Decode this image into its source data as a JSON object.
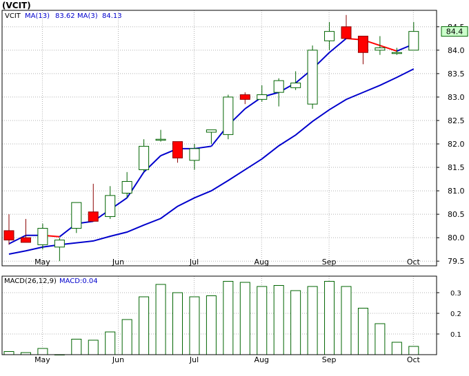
{
  "chart_data": [
    {
      "type": "candlestick",
      "title": "(VCIT)",
      "legend": {
        "symbol": "VCIT",
        "ma_long_label": "MA(13)",
        "ma_long_value": "83.62",
        "ma_short_label": "MA(3)",
        "ma_short_value": "84.13"
      },
      "last_price_label": "84.4",
      "colors": {
        "up_body": "#ffffff",
        "up_outline": "#006400",
        "down_body": "#ff0000",
        "down_outline": "#8b0000",
        "ma_long": "#0000cc",
        "ma_short_up": "#0000cc",
        "ma_short_down": "#ff0000",
        "last_price_box": "#ccffcc"
      },
      "x_labels": [
        {
          "label": "May",
          "index": 1
        },
        {
          "label": "Jun",
          "index": 5.5
        },
        {
          "label": "Jul",
          "index": 10
        },
        {
          "label": "Aug",
          "index": 14
        },
        {
          "label": "Sep",
          "index": 18
        },
        {
          "label": "Oct",
          "index": 23
        }
      ],
      "ylim": [
        79.4,
        84.85
      ],
      "yticks": [
        "79.5",
        "80.0",
        "80.5",
        "81.0",
        "81.5",
        "82.0",
        "82.5",
        "83.0",
        "83.5",
        "84.0",
        "84.5"
      ],
      "candles": [
        {
          "o": 80.15,
          "h": 80.5,
          "l": 79.85,
          "c": 79.95
        },
        {
          "o": 80.0,
          "h": 80.4,
          "l": 79.9,
          "c": 79.9
        },
        {
          "o": 79.85,
          "h": 80.3,
          "l": 79.75,
          "c": 80.2
        },
        {
          "o": 79.8,
          "h": 80.0,
          "l": 79.5,
          "c": 79.95
        },
        {
          "o": 80.2,
          "h": 80.75,
          "l": 80.1,
          "c": 80.75
        },
        {
          "o": 80.55,
          "h": 81.15,
          "l": 80.35,
          "c": 80.35
        },
        {
          "o": 80.45,
          "h": 81.1,
          "l": 80.4,
          "c": 80.9
        },
        {
          "o": 80.95,
          "h": 81.4,
          "l": 80.85,
          "c": 81.2
        },
        {
          "o": 81.45,
          "h": 82.1,
          "l": 81.4,
          "c": 81.95
        },
        {
          "o": 82.1,
          "h": 82.3,
          "l": 82.05,
          "c": 82.1
        },
        {
          "o": 82.05,
          "h": 82.05,
          "l": 81.6,
          "c": 81.7
        },
        {
          "o": 81.65,
          "h": 82.0,
          "l": 81.45,
          "c": 81.9
        },
        {
          "o": 82.25,
          "h": 82.3,
          "l": 82.0,
          "c": 82.3
        },
        {
          "o": 82.2,
          "h": 83.05,
          "l": 82.1,
          "c": 83.0
        },
        {
          "o": 83.05,
          "h": 83.1,
          "l": 82.85,
          "c": 82.95
        },
        {
          "o": 82.95,
          "h": 83.25,
          "l": 82.9,
          "c": 83.05
        },
        {
          "o": 83.1,
          "h": 83.4,
          "l": 82.8,
          "c": 83.35
        },
        {
          "o": 83.2,
          "h": 83.55,
          "l": 83.15,
          "c": 83.3
        },
        {
          "o": 82.85,
          "h": 84.1,
          "l": 82.75,
          "c": 84.0
        },
        {
          "o": 84.2,
          "h": 84.6,
          "l": 84.0,
          "c": 84.4
        },
        {
          "o": 84.5,
          "h": 84.75,
          "l": 84.25,
          "c": 84.25
        },
        {
          "o": 84.3,
          "h": 84.3,
          "l": 83.7,
          "c": 83.95
        },
        {
          "o": 84.0,
          "h": 84.3,
          "l": 83.9,
          "c": 84.05
        },
        {
          "o": 83.95,
          "h": 84.05,
          "l": 83.9,
          "c": 83.95
        },
        {
          "o": 84.0,
          "h": 84.6,
          "l": 84.0,
          "c": 84.4
        }
      ],
      "ma_long": [
        79.65,
        79.72,
        79.8,
        79.85,
        79.89,
        79.93,
        80.03,
        80.12,
        80.27,
        80.41,
        80.67,
        80.85,
        81.0,
        81.22,
        81.45,
        81.68,
        81.96,
        82.19,
        82.48,
        82.73,
        82.95,
        83.1,
        83.25,
        83.42,
        83.6
      ],
      "ma_short": [
        79.87,
        80.05,
        80.05,
        80.02,
        80.3,
        80.35,
        80.6,
        80.85,
        81.4,
        81.75,
        81.9,
        81.9,
        81.95,
        82.4,
        82.75,
        83.0,
        83.1,
        83.3,
        83.6,
        83.95,
        84.25,
        84.22,
        84.1,
        83.98,
        84.13
      ]
    },
    {
      "type": "bar",
      "legend": {
        "label": "MACD(26,12,9)",
        "value_label": "MACD:0.04"
      },
      "x_labels": [
        "May",
        "Jun",
        "Jul",
        "Aug",
        "Sep",
        "Oct"
      ],
      "ylim": [
        0.0,
        0.38
      ],
      "yticks": [
        "0.1",
        "0.2",
        "0.3"
      ],
      "values": [
        0.015,
        0.01,
        0.03,
        0.0,
        0.075,
        0.07,
        0.11,
        0.17,
        0.28,
        0.34,
        0.3,
        0.28,
        0.285,
        0.355,
        0.35,
        0.33,
        0.335,
        0.31,
        0.33,
        0.355,
        0.33,
        0.225,
        0.15,
        0.06,
        0.04
      ]
    }
  ]
}
